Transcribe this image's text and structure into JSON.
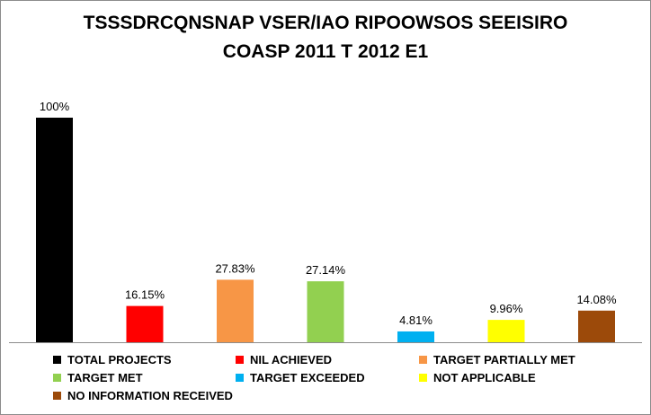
{
  "chart_data": {
    "type": "bar",
    "title_lines": [
      "TSSSDRCQNSNAP VSER/IAO RIPOOWSOS SEEISIRO",
      "COASP 2011 T 2012 E1"
    ],
    "categories": [
      "TOTAL PROJECTS",
      "NIL ACHIEVED",
      "TARGET PARTIALLY MET",
      "TARGET MET",
      "TARGET EXCEEDED",
      "NOT APPLICABLE",
      "NO INFORMATION RECEIVED"
    ],
    "values": [
      100,
      16.15,
      27.83,
      27.14,
      4.81,
      9.96,
      14.08
    ],
    "value_labels": [
      "100%",
      "16.15%",
      "27.83%",
      "27.14%",
      "4.81%",
      "9.96%",
      "14.08%"
    ],
    "colors": [
      "#000000",
      "#ff0000",
      "#f79646",
      "#92d050",
      "#00b0f0",
      "#ffff00",
      "#9c4a0a"
    ],
    "ylim": [
      0,
      100
    ],
    "grid": false,
    "legend_position": "bottom"
  }
}
